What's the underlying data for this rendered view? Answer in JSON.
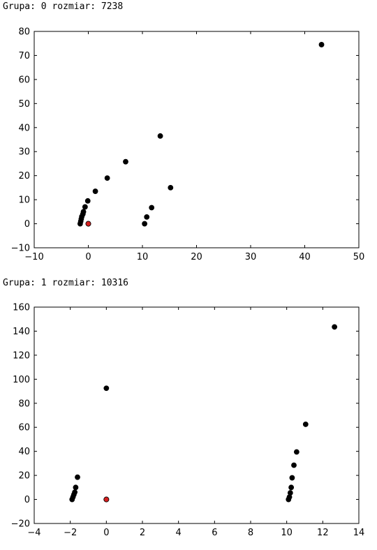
{
  "captions": [
    "Grupa: 0 rozmiar: 7238",
    "Grupa: 1 rozmiar: 10316"
  ],
  "colors": {
    "point": "#000000",
    "highlight": "#d62020",
    "axes": "#000000"
  },
  "chart_data": [
    {
      "type": "scatter",
      "title": "",
      "xlabel": "",
      "ylabel": "",
      "xlim": [
        -10,
        50
      ],
      "ylim": [
        -10,
        80
      ],
      "xticks": [
        -10,
        0,
        10,
        20,
        30,
        40,
        50
      ],
      "yticks": [
        -10,
        0,
        10,
        20,
        30,
        40,
        50,
        60,
        70,
        80
      ],
      "grid": false,
      "points": [
        {
          "x": -1.5,
          "y": 0
        },
        {
          "x": -1.4,
          "y": 1
        },
        {
          "x": -1.3,
          "y": 2
        },
        {
          "x": -1.2,
          "y": 3
        },
        {
          "x": -1.0,
          "y": 4
        },
        {
          "x": -0.9,
          "y": 5
        },
        {
          "x": -0.6,
          "y": 7
        },
        {
          "x": -0.1,
          "y": 9.5
        },
        {
          "x": 1.3,
          "y": 13.5
        },
        {
          "x": 3.5,
          "y": 19
        },
        {
          "x": 6.9,
          "y": 25.8
        },
        {
          "x": 13.3,
          "y": 36.5
        },
        {
          "x": 43.1,
          "y": 74.5
        },
        {
          "x": 10.4,
          "y": 0
        },
        {
          "x": 10.8,
          "y": 2.8
        },
        {
          "x": 11.7,
          "y": 6.7
        },
        {
          "x": 15.2,
          "y": 15
        }
      ],
      "highlight": [
        {
          "x": 0,
          "y": 0
        }
      ]
    },
    {
      "type": "scatter",
      "title": "",
      "xlabel": "",
      "ylabel": "",
      "xlim": [
        -4,
        14
      ],
      "ylim": [
        -20,
        160
      ],
      "xticks": [
        -4,
        -2,
        0,
        2,
        4,
        6,
        8,
        10,
        12,
        14
      ],
      "yticks": [
        -20,
        0,
        20,
        40,
        60,
        80,
        100,
        120,
        140,
        160
      ],
      "grid": false,
      "points": [
        {
          "x": -1.9,
          "y": 0
        },
        {
          "x": -1.85,
          "y": 2
        },
        {
          "x": -1.8,
          "y": 4
        },
        {
          "x": -1.75,
          "y": 6
        },
        {
          "x": -1.7,
          "y": 10
        },
        {
          "x": -1.6,
          "y": 18.5
        },
        {
          "x": 0,
          "y": 92.5
        },
        {
          "x": 10.1,
          "y": 0
        },
        {
          "x": 10.15,
          "y": 2
        },
        {
          "x": 10.2,
          "y": 5.5
        },
        {
          "x": 10.25,
          "y": 10
        },
        {
          "x": 10.3,
          "y": 18
        },
        {
          "x": 10.4,
          "y": 28.5
        },
        {
          "x": 10.55,
          "y": 39.5
        },
        {
          "x": 11.05,
          "y": 62.5
        },
        {
          "x": 12.65,
          "y": 143.5
        }
      ],
      "highlight": [
        {
          "x": 0,
          "y": 0
        }
      ]
    }
  ]
}
